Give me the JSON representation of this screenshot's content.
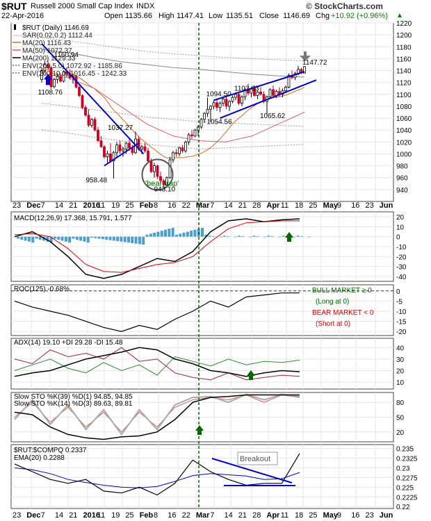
{
  "header": {
    "ticker": "$RUT",
    "name": "Russell 2000 Small Cap Index",
    "exchange": "INDX",
    "date": "22-Apr-2016",
    "open_label": "Open",
    "open": "1135.66",
    "high_label": "High",
    "high": "1147.41",
    "low_label": "Low",
    "low": "1135.51",
    "close_label": "Close",
    "close": "1146.69",
    "chg_label": "Chg",
    "chg": "+10.92 (+0.96%)",
    "chg_arrow": "▲",
    "brand": "© StockCharts.com"
  },
  "chart_data": [
    {
      "panel": "price",
      "type": "candlestick",
      "ylim": [
        920,
        1220
      ],
      "yticks": [
        940,
        960,
        980,
        1000,
        1020,
        1040,
        1060,
        1080,
        1100,
        1120,
        1140,
        1160,
        1180,
        1200,
        1220
      ],
      "legend": [
        {
          "text": "$RUT (Daily) 1146.69",
          "color": "#000000",
          "marker": "candle"
        },
        {
          "text": "SAR(0.02,0.2) 1112.44",
          "color": "#6a7fb0",
          "marker": "dots"
        },
        {
          "text": "MA(20) 1116.43",
          "color": "#d2691e",
          "marker": "line"
        },
        {
          "text": "MA(50) 1072.37",
          "color": "#e06060",
          "marker": "line"
        },
        {
          "text": "MA(200) 1129.33",
          "color": "#000000",
          "marker": "line"
        },
        {
          "text": "ENV(200,5.0) 1072.92 - 1185.86",
          "color": "#666666",
          "marker": "dash"
        },
        {
          "text": "ENV(200,10.0) 1016.45 - 1242.33",
          "color": "#666666",
          "marker": "dash"
        }
      ],
      "annotations": [
        "1160.94",
        "1108.76",
        "1037.27",
        "958.48",
        "943.10",
        "'bear trap'",
        "1094.50",
        "1054.56",
        "1103.63",
        "1065.62",
        "1147.72"
      ],
      "candles": [
        [
          1125,
          1145,
          1120,
          1140
        ],
        [
          1140,
          1156,
          1136,
          1150
        ],
        [
          1150,
          1160.94,
          1140,
          1145
        ],
        [
          1145,
          1148,
          1108.76,
          1113
        ],
        [
          1113,
          1128,
          1110,
          1125
        ],
        [
          1125,
          1135,
          1118,
          1130
        ],
        [
          1130,
          1136,
          1120,
          1122
        ],
        [
          1122,
          1140,
          1120,
          1138
        ],
        [
          1138,
          1145,
          1130,
          1135
        ],
        [
          1135,
          1142,
          1125,
          1128
        ],
        [
          1128,
          1135,
          1118,
          1130
        ],
        [
          1130,
          1132,
          1110,
          1112
        ],
        [
          1112,
          1118,
          1095,
          1098
        ],
        [
          1098,
          1100,
          1075,
          1078
        ],
        [
          1078,
          1082,
          1062,
          1065
        ],
        [
          1065,
          1075,
          1045,
          1048
        ],
        [
          1048,
          1060,
          1044,
          1058
        ],
        [
          1058,
          1062,
          1038,
          1040
        ],
        [
          1040,
          1045,
          1020,
          1022
        ],
        [
          1022,
          1030,
          1010,
          1012
        ],
        [
          1012,
          1015,
          992,
          995
        ],
        [
          995,
          1005,
          985,
          1000
        ],
        [
          1000,
          1018,
          985,
          988
        ],
        [
          988,
          1005,
          958.48,
          1002
        ],
        [
          1002,
          1020,
          995,
          1015
        ],
        [
          1015,
          1022,
          1000,
          1005
        ],
        [
          1005,
          1012,
          995,
          1008
        ],
        [
          1008,
          1020,
          1000,
          1018
        ],
        [
          1018,
          1028,
          1005,
          1010
        ],
        [
          1010,
          1015,
          998,
          1002
        ],
        [
          1002,
          1037.27,
          1000,
          1025
        ],
        [
          1025,
          1030,
          1005,
          1008
        ],
        [
          1008,
          1015,
          1000,
          1012
        ],
        [
          1012,
          1018,
          1002,
          1005
        ],
        [
          1005,
          1010,
          985,
          988
        ],
        [
          988,
          992,
          968,
          970
        ],
        [
          970,
          985,
          960,
          980
        ],
        [
          980,
          982,
          958,
          962
        ],
        [
          962,
          970,
          950,
          955
        ],
        [
          955,
          958,
          943.1,
          948
        ],
        [
          948,
          962,
          945,
          960
        ],
        [
          960,
          995,
          958,
          990
        ],
        [
          990,
          1005,
          985,
          1002
        ],
        [
          1002,
          1008,
          995,
          1000
        ],
        [
          1000,
          1012,
          996,
          1010
        ],
        [
          1010,
          1015,
          1002,
          1005
        ],
        [
          1005,
          1022,
          1002,
          1020
        ],
        [
          1020,
          1035,
          1015,
          1032
        ],
        [
          1032,
          1040,
          1025,
          1030
        ],
        [
          1030,
          1042,
          1028,
          1040
        ],
        [
          1040,
          1048,
          1030,
          1045
        ],
        [
          1045,
          1060,
          1042,
          1058
        ],
        [
          1058,
          1070,
          1052,
          1068
        ],
        [
          1068,
          1094.5,
          1062,
          1075
        ],
        [
          1075,
          1082,
          1054.56,
          1080
        ],
        [
          1080,
          1090,
          1075,
          1086
        ],
        [
          1086,
          1092,
          1072,
          1078
        ],
        [
          1078,
          1088,
          1070,
          1085
        ],
        [
          1085,
          1095,
          1080,
          1092
        ],
        [
          1092,
          1098,
          1075,
          1080
        ],
        [
          1080,
          1090,
          1072,
          1088
        ],
        [
          1088,
          1098,
          1085,
          1095
        ],
        [
          1095,
          1103.63,
          1090,
          1100
        ],
        [
          1100,
          1105,
          1082,
          1085
        ],
        [
          1085,
          1098,
          1080,
          1096
        ],
        [
          1096,
          1110,
          1090,
          1108
        ],
        [
          1108,
          1118,
          1098,
          1102
        ],
        [
          1102,
          1112,
          1095,
          1110
        ],
        [
          1110,
          1115,
          1096,
          1098
        ],
        [
          1098,
          1106,
          1092,
          1104
        ],
        [
          1104,
          1112,
          1098,
          1100
        ],
        [
          1100,
          1105,
          1085,
          1088
        ],
        [
          1088,
          1098,
          1065.62,
          1096
        ],
        [
          1096,
          1110,
          1092,
          1108
        ],
        [
          1108,
          1115,
          1095,
          1098
        ],
        [
          1098,
          1108,
          1094,
          1105
        ],
        [
          1105,
          1112,
          1096,
          1100
        ],
        [
          1100,
          1110,
          1095,
          1106
        ],
        [
          1106,
          1115,
          1102,
          1112
        ],
        [
          1112,
          1135,
          1110,
          1132
        ],
        [
          1132,
          1140,
          1125,
          1128
        ],
        [
          1128,
          1138,
          1124,
          1135
        ],
        [
          1135,
          1147.72,
          1132,
          1142
        ],
        [
          1142,
          1145,
          1134,
          1137
        ],
        [
          1135.66,
          1147.41,
          1135.51,
          1146.69
        ]
      ],
      "x_tick_labels": [
        "23",
        "Dec",
        "7",
        "14",
        "21",
        "2016",
        "11",
        "19",
        "25",
        "Feb",
        "8",
        "16",
        "22",
        "Mar",
        "7",
        "14",
        "21",
        "28",
        "Apr",
        "11",
        "18",
        "25",
        "May",
        "9",
        "16",
        "23",
        "Jun"
      ]
    },
    {
      "panel": "macd",
      "type": "line",
      "title": "MACD(12,26,9) 17.368, 15.791, 1.577",
      "yticks": [
        20,
        10,
        0,
        -10,
        -20,
        -30,
        -40
      ]
    },
    {
      "panel": "roc",
      "type": "line",
      "title": "ROC(125) -0.68%",
      "yticks": [
        0,
        -5,
        -10,
        -15,
        -20
      ],
      "notes": [
        "BULL MARKET ≥ 0",
        "(Long at 0)",
        "BEAR MARKET < 0",
        "(Short at 0)"
      ]
    },
    {
      "panel": "adx",
      "type": "line",
      "title": "ADX(14) 19.10 +DI 29.28 -DI 15.48",
      "yticks": [
        40,
        30,
        20,
        10
      ]
    },
    {
      "panel": "sto",
      "type": "line",
      "title1": "Slow STO %K(39) %D(1) 94.85, 94.85",
      "title2": "Slow STO %K(14) %D(3) 89.63, 89.81",
      "yticks": [
        80,
        50,
        20
      ]
    },
    {
      "panel": "ratio",
      "type": "line",
      "title": "$RUT:$COMPQ 0.2337",
      "sub": "EMA(20) 0.2288",
      "yticks": [
        0.235,
        0.2325,
        0.23,
        0.2275,
        0.225,
        0.2225,
        0.22
      ],
      "callout": "Breakout"
    }
  ],
  "colors": {
    "up": "#ffffff",
    "down": "#cc0022",
    "trend": "#0000cc",
    "vline": "#006600",
    "grid": "#e6e6e6"
  }
}
